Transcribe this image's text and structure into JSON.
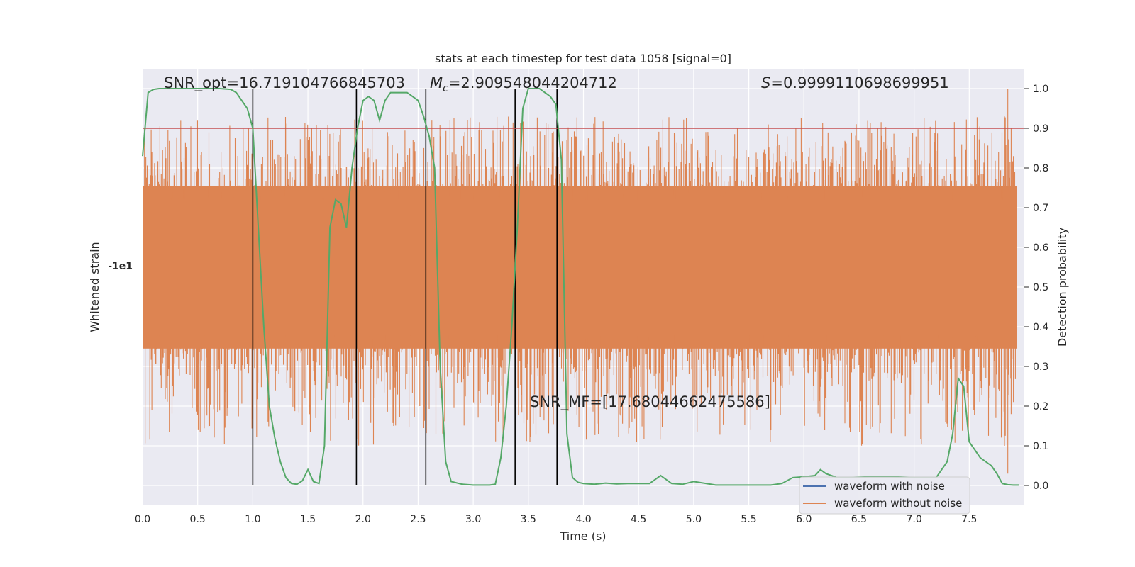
{
  "chart_data": {
    "type": "line",
    "title": "stats at each timestep for test data 1058 [signal=0]",
    "xlabel": "Time (s)",
    "ylabel_left": "Whitened strain",
    "ylabel_right": "Detection probability",
    "xlim": [
      0.0,
      8.0
    ],
    "ylim_right": [
      -0.05,
      1.05
    ],
    "x_ticks": [
      "0.0",
      "0.5",
      "1.0",
      "1.5",
      "2.0",
      "2.5",
      "3.0",
      "3.5",
      "4.0",
      "4.5",
      "5.0",
      "5.5",
      "6.0",
      "6.5",
      "7.0",
      "7.5"
    ],
    "y_ticks_right": [
      "0.0",
      "0.1",
      "0.2",
      "0.3",
      "0.4",
      "0.5",
      "0.6",
      "0.7",
      "0.8",
      "0.9",
      "1.0"
    ],
    "left_tick_label": "-1e1",
    "grid": true,
    "legend_position": "lower-right",
    "annotations": {
      "snr_opt": "SNR_opt=16.719104766845703",
      "mc_symbol": "M",
      "mc_sub": "c",
      "mc_value": "=2.909548044204712",
      "s_symbol": "S",
      "s_value": "=0.9999110698699951",
      "snr_mf": "SNR_MF=[17.68044662475586]"
    },
    "threshold": 0.9,
    "vertical_lines_x": [
      1.0,
      1.94,
      2.57,
      3.38,
      3.76
    ],
    "series": [
      {
        "name": "waveform with noise",
        "color": "#4c72b0"
      },
      {
        "name": "waveform without noise",
        "color": "#dd8452"
      }
    ],
    "probability_color": "#55a868",
    "threshold_color": "#c44e52",
    "noise_center": 0.55,
    "noise_core_range": [
      0.345,
      0.755
    ],
    "probability": {
      "x": [
        0.0,
        0.05,
        0.1,
        0.15,
        0.2,
        0.3,
        0.4,
        0.5,
        0.6,
        0.7,
        0.8,
        0.85,
        0.9,
        0.95,
        1.0,
        1.05,
        1.1,
        1.15,
        1.2,
        1.25,
        1.3,
        1.35,
        1.4,
        1.45,
        1.5,
        1.55,
        1.6,
        1.65,
        1.7,
        1.75,
        1.8,
        1.85,
        1.9,
        1.95,
        2.0,
        2.05,
        2.1,
        2.15,
        2.2,
        2.25,
        2.3,
        2.4,
        2.45,
        2.5,
        2.55,
        2.6,
        2.65,
        2.7,
        2.75,
        2.8,
        2.9,
        3.0,
        3.1,
        3.15,
        3.2,
        3.25,
        3.3,
        3.35,
        3.4,
        3.45,
        3.5,
        3.55,
        3.6,
        3.65,
        3.7,
        3.75,
        3.8,
        3.85,
        3.9,
        3.95,
        4.0,
        4.1,
        4.2,
        4.3,
        4.4,
        4.5,
        4.6,
        4.7,
        4.8,
        4.9,
        5.0,
        5.2,
        5.4,
        5.6,
        5.7,
        5.8,
        5.9,
        6.0,
        6.1,
        6.15,
        6.2,
        6.3,
        6.4,
        6.6,
        6.8,
        7.0,
        7.2,
        7.3,
        7.35,
        7.4,
        7.45,
        7.5,
        7.55,
        7.6,
        7.7,
        7.75,
        7.8,
        7.85,
        7.9,
        7.95
      ],
      "y": [
        0.83,
        0.99,
        0.998,
        1.0,
        1.0,
        1.0,
        1.0,
        1.0,
        1.0,
        1.0,
        0.998,
        0.99,
        0.97,
        0.95,
        0.9,
        0.65,
        0.4,
        0.2,
        0.12,
        0.06,
        0.02,
        0.005,
        0.003,
        0.012,
        0.04,
        0.01,
        0.005,
        0.1,
        0.65,
        0.72,
        0.71,
        0.65,
        0.8,
        0.9,
        0.97,
        0.98,
        0.97,
        0.92,
        0.97,
        0.99,
        0.99,
        0.99,
        0.98,
        0.97,
        0.93,
        0.88,
        0.8,
        0.3,
        0.06,
        0.01,
        0.003,
        0.001,
        0.001,
        0.001,
        0.003,
        0.07,
        0.2,
        0.4,
        0.65,
        0.95,
        1.0,
        1.0,
        1.0,
        0.99,
        0.98,
        0.96,
        0.82,
        0.13,
        0.02,
        0.008,
        0.005,
        0.003,
        0.006,
        0.004,
        0.005,
        0.005,
        0.005,
        0.025,
        0.005,
        0.003,
        0.01,
        0.001,
        0.001,
        0.001,
        0.001,
        0.005,
        0.02,
        0.022,
        0.025,
        0.04,
        0.03,
        0.02,
        0.02,
        0.022,
        0.022,
        0.02,
        0.02,
        0.06,
        0.13,
        0.27,
        0.25,
        0.11,
        0.09,
        0.07,
        0.05,
        0.03,
        0.005,
        0.002,
        0.001,
        0.001
      ]
    }
  }
}
